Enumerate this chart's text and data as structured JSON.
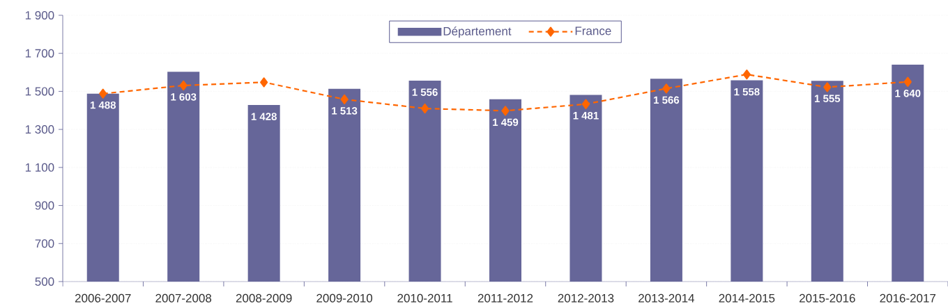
{
  "chart_data": {
    "type": "bar",
    "categories": [
      "2006-2007",
      "2007-2008",
      "2008-2009",
      "2009-2010",
      "2010-2011",
      "2011-2012",
      "2012-2013",
      "2013-2014",
      "2014-2015",
      "2015-2016",
      "2016-2017"
    ],
    "series": [
      {
        "name": "Département",
        "type": "bar",
        "color": "#666699",
        "values": [
          1488,
          1603,
          1428,
          1513,
          1556,
          1459,
          1481,
          1566,
          1558,
          1555,
          1640
        ],
        "value_labels": [
          "1 488",
          "1 603",
          "1 428",
          "1 513",
          "1 556",
          "1 459",
          "1 481",
          "1 566",
          "1 558",
          "1 555",
          "1 640"
        ]
      },
      {
        "name": "France",
        "type": "line",
        "color": "#ff6600",
        "marker": "diamond",
        "line_style": "dashed",
        "values": [
          1488,
          1531,
          1548,
          1458,
          1410,
          1398,
          1433,
          1515,
          1589,
          1522,
          1550
        ]
      }
    ],
    "ylim": [
      500,
      1900
    ],
    "yticks": [
      {
        "value": 500,
        "label": "500"
      },
      {
        "value": 700,
        "label": "700"
      },
      {
        "value": 900,
        "label": "900"
      },
      {
        "value": 1100,
        "label": "1 100"
      },
      {
        "value": 1300,
        "label": "1 300"
      },
      {
        "value": 1500,
        "label": "1 500"
      },
      {
        "value": 1700,
        "label": "1 700"
      },
      {
        "value": 1900,
        "label": "1 900"
      }
    ],
    "grid": "y",
    "legend": "top"
  }
}
